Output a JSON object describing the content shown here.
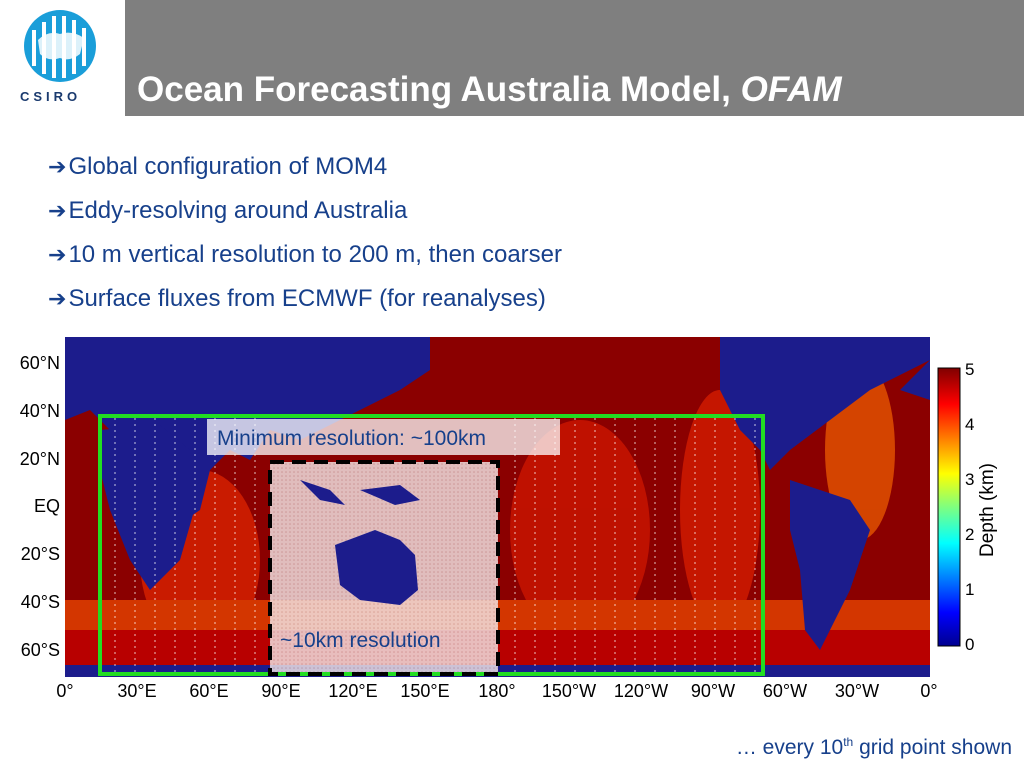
{
  "header": {
    "logo_text": "CSIRO",
    "title_main": "Ocean Forecasting Australia Model, ",
    "title_italic": "OFAM"
  },
  "bullets": [
    "Global configuration of MOM4",
    "Eddy-resolving around Australia",
    "10 m vertical resolution to 200 m, then coarser",
    "Surface fluxes from ECMWF (for reanalyses)"
  ],
  "map": {
    "lat_labels": [
      "60°N",
      "40°N",
      "20°N",
      "EQ",
      "20°S",
      "40°S",
      "60°S"
    ],
    "lon_labels": [
      "0°",
      "30°E",
      "60°E",
      "90°E",
      "120°E",
      "150°E",
      "180°",
      "150°W",
      "120°W",
      "90°W",
      "60°W",
      "30°W",
      "0°"
    ],
    "annotation_outer": "Minimum resolution: ~100km",
    "annotation_inner": "~10km resolution",
    "colorbar": {
      "label": "Depth (km)",
      "ticks": [
        "5",
        "4",
        "3",
        "2",
        "1",
        "0"
      ]
    }
  },
  "footer": {
    "text_before": "… every 10",
    "superscript": "th",
    "text_after": " grid point shown"
  },
  "colors": {
    "title_bar": "#7f7f7f",
    "text_blue": "#17408b",
    "box_green": "#22dd22",
    "land": "#1c1c8c",
    "deep_ocean": "#8b0000"
  }
}
